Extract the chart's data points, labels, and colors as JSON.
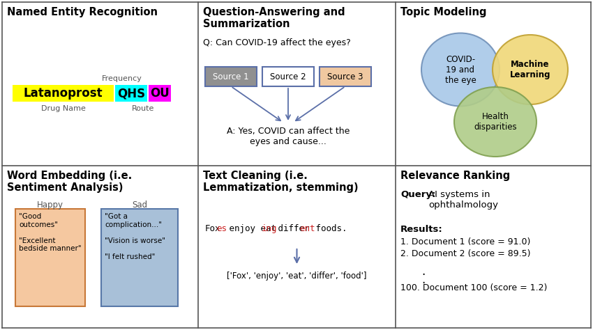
{
  "bg_color": "#ffffff",
  "border_color": "#555555",
  "panel_titles": {
    "top_left": "Named Entity Recognition",
    "top_mid": "Question-Answering and\nSummarization",
    "top_right": "Topic Modeling",
    "bot_left": "Word Embedding (i.e.\nSentiment Analysis)",
    "bot_mid": "Text Cleaning (i.e.\nLemmatization, stemming)",
    "bot_right": "Relevance Ranking"
  },
  "ner": {
    "frequency_label": "Frequency",
    "drug_label": "Drug Name",
    "route_label": "Route",
    "latanoprost_color": "#ffff00",
    "qhs_color": "#00ffff",
    "ou_color": "#ff00ff"
  },
  "qa": {
    "question": "Q: Can COVID-19 affect the eyes?",
    "source1_color": "#909090",
    "source2_color": "#ffffff",
    "source3_color": "#f0c8a0",
    "box_border": "#5b6fa8",
    "answer": "A: Yes, COVID can affect the\neyes and cause..."
  },
  "topic": {
    "covid_color": "#a8c8e8",
    "machine_color": "#f0d878",
    "health_color": "#b0cc88",
    "covid_text": "COVID-\n19 and\nthe eye",
    "machine_text": "Machine\nLearning",
    "health_text": "Health\ndisparities"
  },
  "we": {
    "happy_box_color": "#f5c8a0",
    "sad_box_color": "#a8c0d8",
    "happy_box_edge": "#c87838",
    "sad_box_edge": "#5878a8",
    "happy_text": "\"Good\noutcomes\"\n\n\"Excellent\nbedside manner\"",
    "sad_text": "\"Got a\ncomplication...\"\n\n\"Vision is worse\"\n\n\"I felt rushed\""
  },
  "rr": {
    "query_label": "Query:",
    "query_text": "AI systems in\nophthalmology",
    "results_label": "Results:",
    "result1": "1. Document 1 (score = 91.0)",
    "result2": "2. Document 2 (score = 89.5)",
    "result100": "100. Document 100 (score = 1.2)"
  }
}
